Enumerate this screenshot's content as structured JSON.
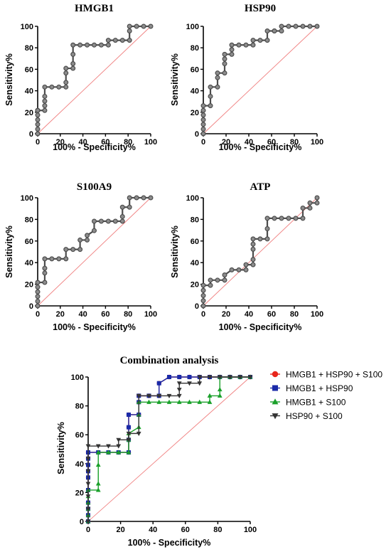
{
  "colors": {
    "roc_line": "#4d4d4d",
    "roc_marker": "#8c8c8c",
    "reference_line": "#f08080",
    "axis": "#000000"
  },
  "chart_data": [
    {
      "type": "line",
      "title": "HMGB1",
      "xlabel": "100% - Specificity%",
      "ylabel": "Sensitivity%",
      "xlim": [
        0,
        100
      ],
      "ylim": [
        0,
        100
      ],
      "xticks": [
        0,
        20,
        40,
        60,
        80,
        100
      ],
      "yticks": [
        0,
        20,
        40,
        60,
        80,
        100
      ],
      "reference_line": "diagonal",
      "series": [
        {
          "x": [
            0,
            0,
            0,
            0,
            0,
            0,
            0,
            0,
            0,
            6.25,
            6.25,
            6.25,
            6.25,
            6.25,
            12.5,
            18.75,
            25,
            25,
            25,
            25,
            31.25,
            31.25,
            31.25,
            31.25,
            37.5,
            43.75,
            50,
            56.25,
            62.5,
            62.5,
            68.75,
            75,
            81.25,
            81.25,
            81.25,
            87.5,
            93.75,
            100
          ],
          "y": [
            0,
            4.3,
            8.7,
            13,
            17.4,
            21.7,
            21.7,
            21.7,
            21.7,
            21.7,
            26.1,
            30.4,
            34.8,
            43.5,
            43.5,
            43.5,
            43.5,
            47.8,
            56.5,
            60.9,
            60.9,
            65.2,
            73.9,
            82.6,
            82.6,
            82.6,
            82.6,
            82.6,
            82.6,
            87,
            87,
            87,
            87,
            95.7,
            100,
            100,
            100,
            100
          ]
        }
      ]
    },
    {
      "type": "line",
      "title": "HSP90",
      "xlabel": "100% - Specificity%",
      "ylabel": "Sensitivity%",
      "xlim": [
        0,
        100
      ],
      "ylim": [
        0,
        100
      ],
      "xticks": [
        0,
        20,
        40,
        60,
        80,
        100
      ],
      "yticks": [
        0,
        20,
        40,
        60,
        80,
        100
      ],
      "reference_line": "diagonal",
      "series": [
        {
          "x": [
            0,
            0,
            0,
            0,
            0,
            0,
            0,
            6.25,
            6.25,
            6.25,
            12.5,
            12.5,
            12.5,
            18.75,
            18.75,
            18.75,
            18.75,
            25,
            25,
            25,
            31.25,
            37.5,
            43.75,
            43.75,
            50,
            56.25,
            56.25,
            62.5,
            62.5,
            68.75,
            68.75,
            75,
            81.25,
            87.5,
            93.75,
            100
          ],
          "y": [
            0,
            4.3,
            8.7,
            13,
            17.4,
            21.7,
            26.1,
            26.1,
            34.8,
            43.5,
            43.5,
            52.2,
            56.5,
            56.5,
            65.2,
            69.6,
            73.9,
            73.9,
            78.3,
            82.6,
            82.6,
            82.6,
            82.6,
            87,
            87,
            87,
            95.7,
            95.7,
            95.7,
            95.7,
            100,
            100,
            100,
            100,
            100,
            100
          ]
        }
      ]
    },
    {
      "type": "line",
      "title": "S100A9",
      "xlabel": "100% - Specificity%",
      "ylabel": "Sensitivity%",
      "xlim": [
        0,
        100
      ],
      "ylim": [
        0,
        100
      ],
      "xticks": [
        0,
        20,
        40,
        60,
        80,
        100
      ],
      "yticks": [
        0,
        20,
        40,
        60,
        80,
        100
      ],
      "reference_line": "diagonal",
      "series": [
        {
          "x": [
            0,
            0,
            0,
            0,
            0,
            0,
            6.25,
            6.25,
            6.25,
            6.25,
            12.5,
            18.75,
            25,
            25,
            31.25,
            37.5,
            37.5,
            43.75,
            43.75,
            50,
            50,
            56.25,
            62.5,
            68.75,
            75,
            75,
            75,
            81.25,
            81.25,
            87.5,
            93.75,
            100
          ],
          "y": [
            0,
            4.3,
            8.7,
            13,
            17.4,
            21.7,
            21.7,
            30.4,
            34.8,
            43.5,
            43.5,
            43.5,
            43.5,
            52.2,
            52.2,
            52.2,
            60.9,
            60.9,
            65.2,
            69.6,
            78.3,
            78.3,
            78.3,
            78.3,
            78.3,
            82.6,
            91.3,
            91.3,
            100,
            100,
            100,
            100
          ]
        }
      ]
    },
    {
      "type": "line",
      "title": "ATP",
      "xlabel": "100% - Specificity%",
      "ylabel": "Sensitivity%",
      "xlim": [
        0,
        100
      ],
      "ylim": [
        0,
        100
      ],
      "xticks": [
        0,
        20,
        40,
        60,
        80,
        100
      ],
      "yticks": [
        0,
        20,
        40,
        60,
        80,
        100
      ],
      "reference_line": "diagonal",
      "series": [
        {
          "x": [
            0,
            0,
            0,
            0,
            0,
            6.25,
            6.25,
            12.5,
            18.75,
            18.75,
            25,
            31.25,
            37.5,
            37.5,
            43.75,
            43.75,
            43.75,
            43.75,
            43.75,
            50,
            56.25,
            56.25,
            56.25,
            62.5,
            68.75,
            75,
            81.25,
            87.5,
            87.5,
            93.75,
            93.75,
            100,
            100
          ],
          "y": [
            0,
            4.8,
            9.5,
            14.3,
            19,
            19,
            23.8,
            23.8,
            23.8,
            28.6,
            33.3,
            33.3,
            33.3,
            38.1,
            38.1,
            42.9,
            52.4,
            57.1,
            61.9,
            61.9,
            61.9,
            71.4,
            81,
            81,
            81,
            81,
            81,
            81,
            90.5,
            90.5,
            95.2,
            95.2,
            100
          ]
        }
      ]
    },
    {
      "type": "line",
      "title": "Combination analysis",
      "xlabel": "100% - Specificity%",
      "ylabel": "Sensitivity%",
      "xlim": [
        0,
        100
      ],
      "ylim": [
        0,
        100
      ],
      "xticks": [
        0,
        20,
        40,
        60,
        80,
        100
      ],
      "yticks": [
        0,
        20,
        40,
        60,
        80,
        100
      ],
      "reference_line": "diagonal",
      "legend": "right",
      "series": [
        {
          "name": "HMGB1 + HSP90 + S100",
          "color": "#e8261c",
          "marker": "circle",
          "x": [
            0,
            0,
            0,
            0,
            0,
            0,
            0,
            0,
            0,
            0,
            6.25,
            12.5,
            18.75,
            25,
            25,
            25,
            25,
            31.25,
            31.25,
            31.25,
            37.5,
            43.75,
            43.75,
            50,
            56.25,
            62.5,
            68.75,
            75,
            81.25,
            87.5,
            93.75,
            100
          ],
          "y": [
            0,
            4.3,
            8.7,
            13,
            21.7,
            30.4,
            34.8,
            39.1,
            43.5,
            47.8,
            47.8,
            47.8,
            47.8,
            47.8,
            56.5,
            65.2,
            73.9,
            73.9,
            82.6,
            87,
            87,
            87,
            95.7,
            100,
            100,
            100,
            100,
            100,
            100,
            100,
            100,
            100
          ]
        },
        {
          "name": "HMGB1 + HSP90",
          "color": "#1a2aa8",
          "marker": "square",
          "x": [
            0,
            0,
            0,
            0,
            0,
            0,
            0,
            0,
            0,
            0,
            6.25,
            12.5,
            18.75,
            25,
            25,
            25,
            25,
            31.25,
            31.25,
            31.25,
            37.5,
            43.75,
            43.75,
            50,
            56.25,
            62.5,
            68.75,
            75,
            81.25,
            87.5,
            93.75,
            100
          ],
          "y": [
            0,
            4.3,
            8.7,
            13,
            21.7,
            30.4,
            34.8,
            39.1,
            43.5,
            47.8,
            47.8,
            47.8,
            47.8,
            47.8,
            56.5,
            65.2,
            73.9,
            73.9,
            82.6,
            87,
            87,
            87,
            95.7,
            100,
            100,
            100,
            100,
            100,
            100,
            100,
            100,
            100
          ]
        },
        {
          "name": "HMGB1 + S100",
          "color": "#1aa02a",
          "marker": "triangle-up",
          "x": [
            0,
            0,
            0,
            0,
            0,
            0,
            6.25,
            6.25,
            6.25,
            6.25,
            12.5,
            18.75,
            25,
            25,
            25,
            31.25,
            31.25,
            31.25,
            37.5,
            43.75,
            50,
            56.25,
            62.5,
            68.75,
            75,
            75,
            81.25,
            81.25,
            81.25,
            87.5,
            93.75,
            100
          ],
          "y": [
            0,
            4.3,
            8.7,
            13,
            17.4,
            21.7,
            21.7,
            26.1,
            39.1,
            47.8,
            47.8,
            47.8,
            47.8,
            56.5,
            60.9,
            65.2,
            73.9,
            82.6,
            82.6,
            82.6,
            82.6,
            82.6,
            82.6,
            82.6,
            82.6,
            87,
            87,
            91.3,
            100,
            100,
            100,
            100
          ]
        },
        {
          "name": "HSP90 + S100",
          "color": "#333333",
          "marker": "triangle-down",
          "x": [
            0,
            0,
            0,
            0,
            0,
            0,
            0,
            6.25,
            12.5,
            18.75,
            18.75,
            25,
            25,
            31.25,
            31.25,
            37.5,
            43.75,
            50,
            56.25,
            56.25,
            56.25,
            62.5,
            68.75,
            68.75,
            75,
            81.25,
            87.5,
            93.75,
            100
          ],
          "y": [
            0,
            8.7,
            17.4,
            26.1,
            34.8,
            43.5,
            52.2,
            52.2,
            52.2,
            52.2,
            56.5,
            56.5,
            60.9,
            60.9,
            87,
            87,
            87,
            87,
            87,
            91.3,
            95.7,
            95.7,
            95.7,
            100,
            100,
            100,
            100,
            100,
            100
          ]
        }
      ]
    }
  ]
}
